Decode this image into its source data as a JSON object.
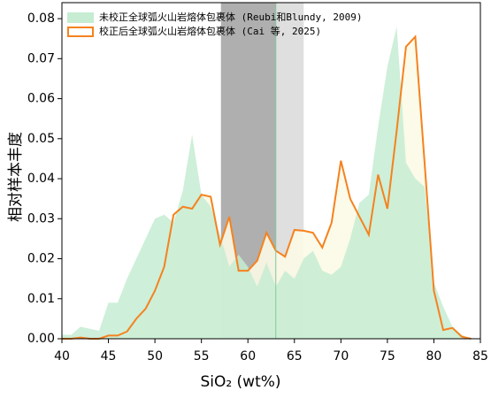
{
  "chart_data": {
    "type": "line",
    "xlabel": "SiO₂ (wt%)",
    "ylabel": "相对样本丰度",
    "x": [
      40,
      41,
      42,
      43,
      44,
      45,
      46,
      47,
      48,
      49,
      50,
      51,
      52,
      53,
      54,
      55,
      56,
      57,
      58,
      59,
      60,
      61,
      62,
      63,
      64,
      65,
      66,
      67,
      68,
      69,
      70,
      71,
      72,
      73,
      74,
      75,
      76,
      77,
      78,
      79,
      80,
      81,
      82,
      83,
      84
    ],
    "series": [
      {
        "name": "未校正全球弧火山岩熔体包裹体 (Reubi和Blundy, 2009)",
        "type": "area",
        "color": "#c6ecd2",
        "values": [
          0.001,
          0.001,
          0.003,
          0.0025,
          0.002,
          0.009,
          0.009,
          0.015,
          0.02,
          0.025,
          0.03,
          0.031,
          0.029,
          0.037,
          0.051,
          0.036,
          0.033,
          0.026,
          0.018,
          0.021,
          0.018,
          0.013,
          0.019,
          0.013,
          0.017,
          0.015,
          0.02,
          0.022,
          0.017,
          0.016,
          0.018,
          0.025,
          0.034,
          0.036,
          0.053,
          0.068,
          0.078,
          0.044,
          0.04,
          0.038,
          0.014,
          0.008,
          0.003,
          0.001,
          0
        ]
      },
      {
        "name": "校正后全球弧火山岩熔体包裹体 (Cai 等, 2025)",
        "type": "line",
        "color": "#f5821f",
        "fill": "#fcf9e6",
        "values": [
          0,
          0,
          0.0003,
          0,
          0,
          0.0008,
          0.0008,
          0.0018,
          0.005,
          0.0075,
          0.012,
          0.018,
          0.031,
          0.033,
          0.0325,
          0.036,
          0.0355,
          0.0235,
          0.0305,
          0.017,
          0.017,
          0.0195,
          0.0265,
          0.022,
          0.0205,
          0.0272,
          0.027,
          0.0265,
          0.0228,
          0.029,
          0.0445,
          0.035,
          0.0305,
          0.026,
          0.041,
          0.0325,
          0.052,
          0.073,
          0.0755,
          0.044,
          0.012,
          0.0022,
          0.0027,
          0.0005,
          0
        ]
      }
    ],
    "bands": [
      {
        "xmin": 57.1,
        "xmax": 63,
        "color": "#a6a6a6"
      },
      {
        "xmin": 63,
        "xmax": 66,
        "color": "#dcdcdc"
      }
    ],
    "vline": {
      "x": 63,
      "color": "#7fc99a"
    },
    "xlim": [
      40,
      85
    ],
    "xticks": [
      40,
      45,
      50,
      55,
      60,
      65,
      70,
      75,
      80,
      85
    ],
    "ylim": [
      0,
      0.084
    ],
    "yticks": [
      {
        "value": 0,
        "label": "0.00"
      },
      {
        "value": 0.01,
        "label": "0.01"
      },
      {
        "value": 0.02,
        "label": "0.02"
      },
      {
        "value": 0.03,
        "label": "0.03"
      },
      {
        "value": 0.04,
        "label": "0.04"
      },
      {
        "value": 0.05,
        "label": "0.05"
      },
      {
        "value": 0.06,
        "label": "0.06"
      },
      {
        "value": 0.07,
        "label": "0.07"
      },
      {
        "value": 0.08,
        "label": "0.08"
      }
    ],
    "legend": "upper left"
  }
}
